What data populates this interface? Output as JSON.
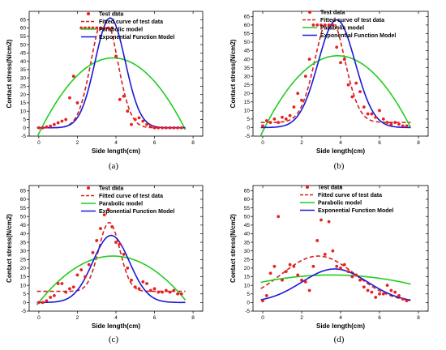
{
  "legend_labels": {
    "test": "Test data",
    "fitted": "Fitted curve of test data",
    "parabolic": "Parabolic model",
    "exponential": "Exponential Function Model"
  },
  "colors": {
    "test": "#e8201f",
    "fitted": "#d42020",
    "parabolic": "#22cc22",
    "exponential": "#1a1ad6"
  },
  "chart_data": [
    {
      "type": "line",
      "panel": "(a)",
      "caption": "(a)",
      "xlabel": "Side length(cm)",
      "ylabel": "Contact stress(N/cm2)",
      "xlim": [
        -0.5,
        8.5
      ],
      "ylim": [
        -5,
        70
      ],
      "xticks": [
        0,
        2,
        4,
        6,
        8
      ],
      "yticks": [
        -5,
        0,
        5,
        10,
        15,
        20,
        25,
        30,
        35,
        40,
        45,
        50,
        55,
        60,
        65
      ],
      "series": [
        {
          "name": "Test data",
          "kind": "scatter",
          "x": [
            0,
            0.2,
            0.4,
            0.6,
            0.8,
            1.0,
            1.2,
            1.4,
            1.6,
            1.8,
            2.0,
            2.2,
            2.4,
            2.6,
            2.8,
            3.0,
            3.2,
            3.4,
            3.6,
            3.8,
            4.0,
            4.2,
            4.4,
            4.6,
            4.8,
            5.0,
            5.2,
            5.4,
            5.6,
            5.8,
            6.0,
            6.2,
            6.4,
            6.6,
            6.8,
            7.0,
            7.2,
            7.4
          ],
          "y": [
            0,
            0,
            0.5,
            1,
            2,
            3,
            4,
            5,
            18,
            31,
            15,
            60,
            60,
            60,
            60,
            60,
            60,
            60,
            60,
            60,
            43,
            17,
            19,
            10,
            2,
            5,
            6,
            4,
            2,
            1,
            0,
            0,
            0,
            0,
            0,
            0,
            0,
            0
          ]
        },
        {
          "name": "Fitted curve of test data",
          "kind": "line",
          "model": "gauss",
          "base": 0,
          "amp": 67,
          "center": 3.4,
          "sigma": 0.68,
          "cap": 60
        },
        {
          "name": "Parabolic model",
          "kind": "line",
          "model": "parabola",
          "peak": 42,
          "center": 3.85,
          "root_left": 0.15,
          "root_right": 7.55
        },
        {
          "name": "Exponential Function Model",
          "kind": "line",
          "model": "gauss",
          "base": 0,
          "amp": 66,
          "center": 3.7,
          "sigma": 0.78
        }
      ]
    },
    {
      "type": "line",
      "panel": "(b)",
      "caption": "(b)",
      "xlabel": "Side length(cm)",
      "ylabel": "Contact stress(N/cm2)",
      "xlim": [
        -0.5,
        8.5
      ],
      "ylim": [
        -5,
        68
      ],
      "xticks": [
        0,
        2,
        4,
        6,
        8
      ],
      "yticks": [
        -5,
        0,
        5,
        10,
        15,
        20,
        25,
        30,
        35,
        40,
        45,
        50,
        55,
        60,
        65
      ],
      "series": [
        {
          "name": "Test data",
          "kind": "scatter",
          "x": [
            0,
            0.2,
            0.4,
            0.6,
            0.8,
            1.0,
            1.2,
            1.4,
            1.6,
            1.8,
            2.0,
            2.2,
            2.4,
            2.6,
            2.8,
            3.0,
            3.2,
            3.4,
            3.6,
            3.8,
            4.0,
            4.2,
            4.4,
            4.6,
            4.8,
            5.0,
            5.2,
            5.4,
            5.6,
            5.8,
            6.0,
            6.2,
            6.4,
            6.6,
            6.8,
            7.0,
            7.2,
            7.4
          ],
          "y": [
            1,
            4,
            3,
            5,
            3,
            6,
            5,
            7,
            12,
            20,
            16,
            30,
            40,
            60,
            60,
            60,
            60,
            60,
            60,
            47,
            38,
            40,
            25,
            18,
            26,
            21,
            12,
            8,
            8,
            6,
            10,
            5,
            3,
            2,
            3,
            2,
            1,
            1
          ]
        },
        {
          "name": "Fitted curve of test data",
          "kind": "line",
          "model": "gauss",
          "base": 3,
          "amp": 62,
          "center": 3.45,
          "sigma": 0.75,
          "cap": 60
        },
        {
          "name": "Parabolic model",
          "kind": "line",
          "model": "parabola",
          "peak": 42,
          "center": 3.85,
          "root_left": 0.1,
          "root_right": 7.6
        },
        {
          "name": "Exponential Function Model",
          "kind": "line",
          "model": "gauss",
          "base": 0,
          "amp": 63,
          "center": 3.8,
          "sigma": 0.95
        }
      ]
    },
    {
      "type": "line",
      "panel": "(c)",
      "caption": "(c)",
      "xlabel": "Side length(cm)",
      "ylabel": "Contact stress(N/cm2)",
      "xlim": [
        -0.5,
        8.5
      ],
      "ylim": [
        -5,
        68
      ],
      "xticks": [
        0,
        2,
        4,
        6,
        8
      ],
      "yticks": [
        -5,
        0,
        5,
        10,
        15,
        20,
        25,
        30,
        35,
        40,
        45,
        50,
        55,
        60,
        65
      ],
      "series": [
        {
          "name": "Test data",
          "kind": "scatter",
          "x": [
            0,
            0.2,
            0.4,
            0.6,
            0.8,
            1.0,
            1.2,
            1.4,
            1.6,
            1.8,
            2.0,
            2.2,
            2.4,
            2.6,
            2.8,
            3.0,
            3.2,
            3.4,
            3.6,
            3.8,
            4.0,
            4.2,
            4.4,
            4.6,
            4.8,
            5.0,
            5.2,
            5.4,
            5.6,
            5.8,
            6.0,
            6.2,
            6.4,
            6.6,
            6.8,
            7.0,
            7.2,
            7.4
          ],
          "y": [
            0,
            0,
            1,
            3,
            4,
            11,
            11,
            6,
            8,
            9,
            16,
            19,
            15,
            22,
            29,
            36,
            43,
            51,
            54,
            44,
            35,
            34,
            28,
            20,
            13,
            9,
            8,
            12,
            11,
            7,
            8,
            6,
            6,
            7,
            6,
            7,
            5,
            5
          ]
        },
        {
          "name": "Fitted curve of test data",
          "kind": "line",
          "model": "gauss",
          "base": 6.5,
          "amp": 40,
          "center": 3.65,
          "sigma": 0.55
        },
        {
          "name": "Parabolic model",
          "kind": "line",
          "model": "parabola",
          "peak": 27,
          "center": 3.85,
          "root_left": 0.0,
          "root_right": 7.7
        },
        {
          "name": "Exponential Function Model",
          "kind": "line",
          "model": "gauss",
          "base": 0,
          "amp": 39,
          "center": 3.75,
          "sigma": 0.95
        }
      ]
    },
    {
      "type": "line",
      "panel": "(d)",
      "caption": "(d)",
      "xlabel": "Side length(cm)",
      "ylabel": "Contact stress(N/cm2)",
      "xlim": [
        -0.5,
        8.5
      ],
      "ylim": [
        -5,
        68
      ],
      "xticks": [
        0,
        2,
        4,
        6,
        8
      ],
      "yticks": [
        -5,
        0,
        5,
        10,
        15,
        20,
        25,
        30,
        35,
        40,
        45,
        50,
        55,
        60,
        65
      ],
      "series": [
        {
          "name": "Test data",
          "kind": "scatter",
          "x": [
            0,
            0.2,
            0.4,
            0.6,
            0.8,
            1.0,
            1.2,
            1.4,
            1.6,
            1.8,
            2.0,
            2.2,
            2.4,
            2.6,
            2.8,
            3.0,
            3.2,
            3.4,
            3.6,
            3.8,
            4.0,
            4.2,
            4.4,
            4.6,
            4.8,
            5.0,
            5.2,
            5.4,
            5.6,
            5.8,
            6.0,
            6.2,
            6.4,
            6.6,
            6.8,
            7.0,
            7.2,
            7.4
          ],
          "y": [
            1,
            4,
            17,
            21,
            50,
            13,
            18,
            22,
            21,
            16,
            13,
            12,
            7,
            21,
            36,
            48,
            28,
            47,
            30,
            21,
            20,
            22,
            18,
            15,
            16,
            13,
            9,
            7,
            6,
            3,
            5,
            5,
            10,
            7,
            6,
            4,
            2,
            1
          ]
        },
        {
          "name": "Fitted curve of test data",
          "kind": "line",
          "model": "gauss",
          "base": 0,
          "amp": 27,
          "center": 2.85,
          "sigma": 1.9
        },
        {
          "name": "Parabolic model",
          "kind": "line",
          "model": "parabola",
          "peak": 16,
          "center": 3.55,
          "root_left": -3.5,
          "root_right": 10.6
        },
        {
          "name": "Exponential Function Model",
          "kind": "line",
          "model": "gauss",
          "base": 0,
          "amp": 19.5,
          "center": 3.7,
          "sigma": 1.7
        }
      ]
    }
  ]
}
